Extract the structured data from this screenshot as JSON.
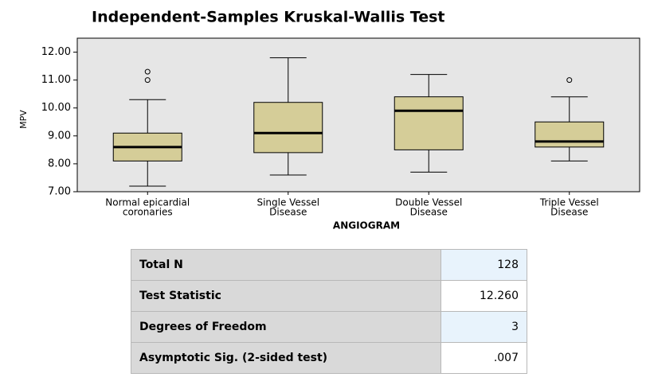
{
  "chart_data": {
    "type": "box",
    "title": "Independent-Samples Kruskal-Wallis Test",
    "x_label": "ANGIOGRAM",
    "y_label": "MPV",
    "categories": [
      [
        "Normal epicardial",
        "coronaries"
      ],
      [
        "Single Vessel",
        "Disease"
      ],
      [
        "Double Vessel",
        "Disease"
      ],
      [
        "Triple Vessel",
        "Disease"
      ]
    ],
    "boxes": [
      {
        "min": 7.2,
        "q1": 8.1,
        "median": 8.6,
        "q3": 9.1,
        "max": 10.3,
        "outliers": [
          11.0,
          11.3
        ]
      },
      {
        "min": 7.6,
        "q1": 8.4,
        "median": 9.1,
        "q3": 10.2,
        "max": 11.8,
        "outliers": []
      },
      {
        "min": 7.7,
        "q1": 8.5,
        "median": 9.9,
        "q3": 10.4,
        "max": 11.2,
        "outliers": []
      },
      {
        "min": 8.1,
        "q1": 8.6,
        "median": 8.8,
        "q3": 9.5,
        "max": 10.4,
        "outliers": [
          11.0
        ]
      }
    ],
    "color": "#d5cd98",
    "ylim": [
      7,
      12.5
    ],
    "yticks": [
      {
        "value": 7,
        "label": "7.00"
      },
      {
        "value": 8,
        "label": "8.00"
      },
      {
        "value": 9,
        "label": "9.00"
      },
      {
        "value": 10,
        "label": "10.00"
      },
      {
        "value": 11,
        "label": "11.00"
      },
      {
        "value": 12,
        "label": "12.00"
      }
    ]
  },
  "table": {
    "rows": [
      [
        "Total N",
        "128"
      ],
      [
        "Test Statistic",
        "12.260"
      ],
      [
        "Degrees of Freedom",
        "3"
      ],
      [
        "Asymptotic Sig. (2-sided test)",
        ".007"
      ]
    ]
  }
}
